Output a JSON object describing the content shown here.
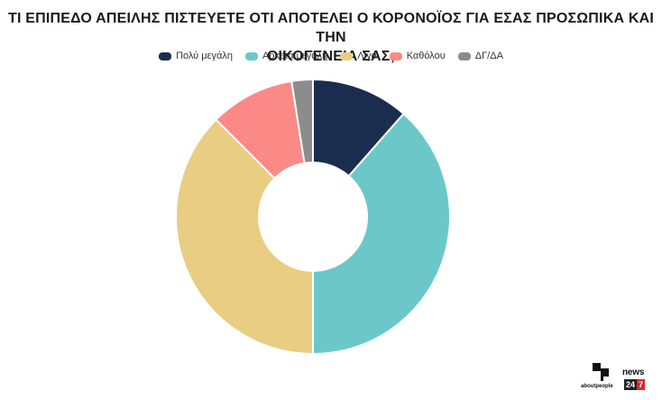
{
  "title": {
    "line1": "ΤΙ ΕΠΙΠΕΔΟ ΑΠΕΙΛΗΣ ΠΙΣΤΕΥΕΤΕ ΟΤΙ ΑΠΟΤΕΛΕΙ Ο ΚΟΡΟΝΟΪΟΣ ΓΙΑ ΕΣΑΣ ΠΡΟΣΩΠΙΚΑ ΚΑΙ ΤΗΝ",
    "line2": "ΟΙΚΟΓΕΝΕΙΑ ΣΑΣ;"
  },
  "chart_data": {
    "type": "pie",
    "variant": "donut",
    "title": "ΤΙ ΕΠΙΠΕΔΟ ΑΠΕΙΛΗΣ ΠΙΣΤΕΥΕΤΕ ΟΤΙ ΑΠΟΤΕΛΕΙ Ο ΚΟΡΟΝΟΪΟΣ ΓΙΑ ΕΣΑΣ ΠΡΟΣΩΠΙΚΑ ΚΑΙ ΤΗΝ ΟΙΚΟΓΕΝΕΙΑ ΣΑΣ;",
    "legend_position": "top-center",
    "categories": [
      "Πολύ μεγάλη",
      "Αρκετά μεγάλη",
      "Λίγο",
      "Καθόλου",
      "ΔΓ/ΔΑ"
    ],
    "values": [
      11.5,
      38.5,
      37.5,
      10,
      2.5
    ],
    "colors": [
      "#1b2d4f",
      "#6cc8c8",
      "#e8cd82",
      "#fb8a86",
      "#8c8c8c"
    ],
    "start_angle_deg": 0,
    "direction": "clockwise"
  },
  "branding": {
    "left_logo_text": "aboutpeople",
    "right_logo_word": "news",
    "right_logo_num_a": "24",
    "right_logo_num_b": "7"
  }
}
